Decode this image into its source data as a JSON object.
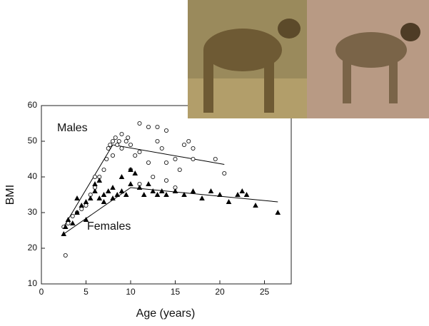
{
  "chart_data": {
    "type": "scatter",
    "xlabel": "Age  (years)",
    "ylabel": "BMI",
    "xlim": [
      0,
      28
    ],
    "ylim": [
      10,
      60
    ],
    "xticks": [
      0,
      5,
      10,
      15,
      20,
      25
    ],
    "yticks": [
      10,
      20,
      30,
      40,
      50,
      60
    ],
    "series": [
      {
        "name": "Males",
        "marker": "circle",
        "color": "#000000",
        "x": [
          2.5,
          2.7,
          3,
          3.5,
          4,
          4.5,
          5,
          5.5,
          6,
          6,
          6.5,
          7,
          7.3,
          7.5,
          7.7,
          8,
          8,
          8.3,
          8.5,
          8.7,
          9,
          9,
          9.5,
          9.7,
          10,
          10,
          10.5,
          11,
          11,
          12,
          12,
          13,
          13,
          13.5,
          14,
          14,
          15,
          15.5,
          16,
          16.5,
          17,
          17,
          19.5,
          20.5,
          15,
          14,
          11,
          12.5
        ],
        "y": [
          26,
          18,
          27,
          29,
          30,
          31,
          32,
          35,
          37,
          40,
          40,
          42,
          45,
          48,
          49,
          50,
          46,
          51,
          49,
          50,
          52,
          48,
          50,
          51,
          49,
          42,
          46,
          55,
          47,
          54,
          44,
          54,
          50,
          48,
          53,
          44,
          45,
          42,
          49,
          50,
          48,
          45,
          45,
          41,
          37,
          39,
          38,
          40
        ],
        "fit_x": [
          2.5,
          8,
          20.5
        ],
        "fit_y": [
          26,
          49,
          43.5
        ]
      },
      {
        "name": "Females",
        "marker": "triangle",
        "color": "#000000",
        "x": [
          2.5,
          2.7,
          3,
          3.5,
          4,
          4,
          4.5,
          5,
          5.5,
          6,
          6,
          6.5,
          7,
          7,
          7.5,
          8,
          8,
          8.5,
          9,
          9.5,
          10,
          10,
          10.5,
          11,
          11.5,
          12,
          12.5,
          13,
          13.5,
          14,
          15,
          16,
          17,
          18,
          19,
          20,
          21,
          22,
          22.5,
          23,
          24,
          26.5,
          5,
          6.5,
          9
        ],
        "y": [
          24,
          26,
          28,
          27,
          34,
          30,
          32,
          33,
          34,
          36,
          38,
          34,
          35,
          33,
          36,
          37,
          34,
          35,
          36,
          35,
          38,
          42,
          41,
          37,
          35,
          38,
          36,
          35,
          36,
          35,
          36,
          35,
          36,
          34,
          36,
          35,
          33,
          35,
          36,
          35,
          32,
          30,
          28,
          39,
          40
        ],
        "fit_x": [
          2.5,
          10,
          26.5
        ],
        "fit_y": [
          24,
          37,
          33
        ]
      }
    ]
  }
}
